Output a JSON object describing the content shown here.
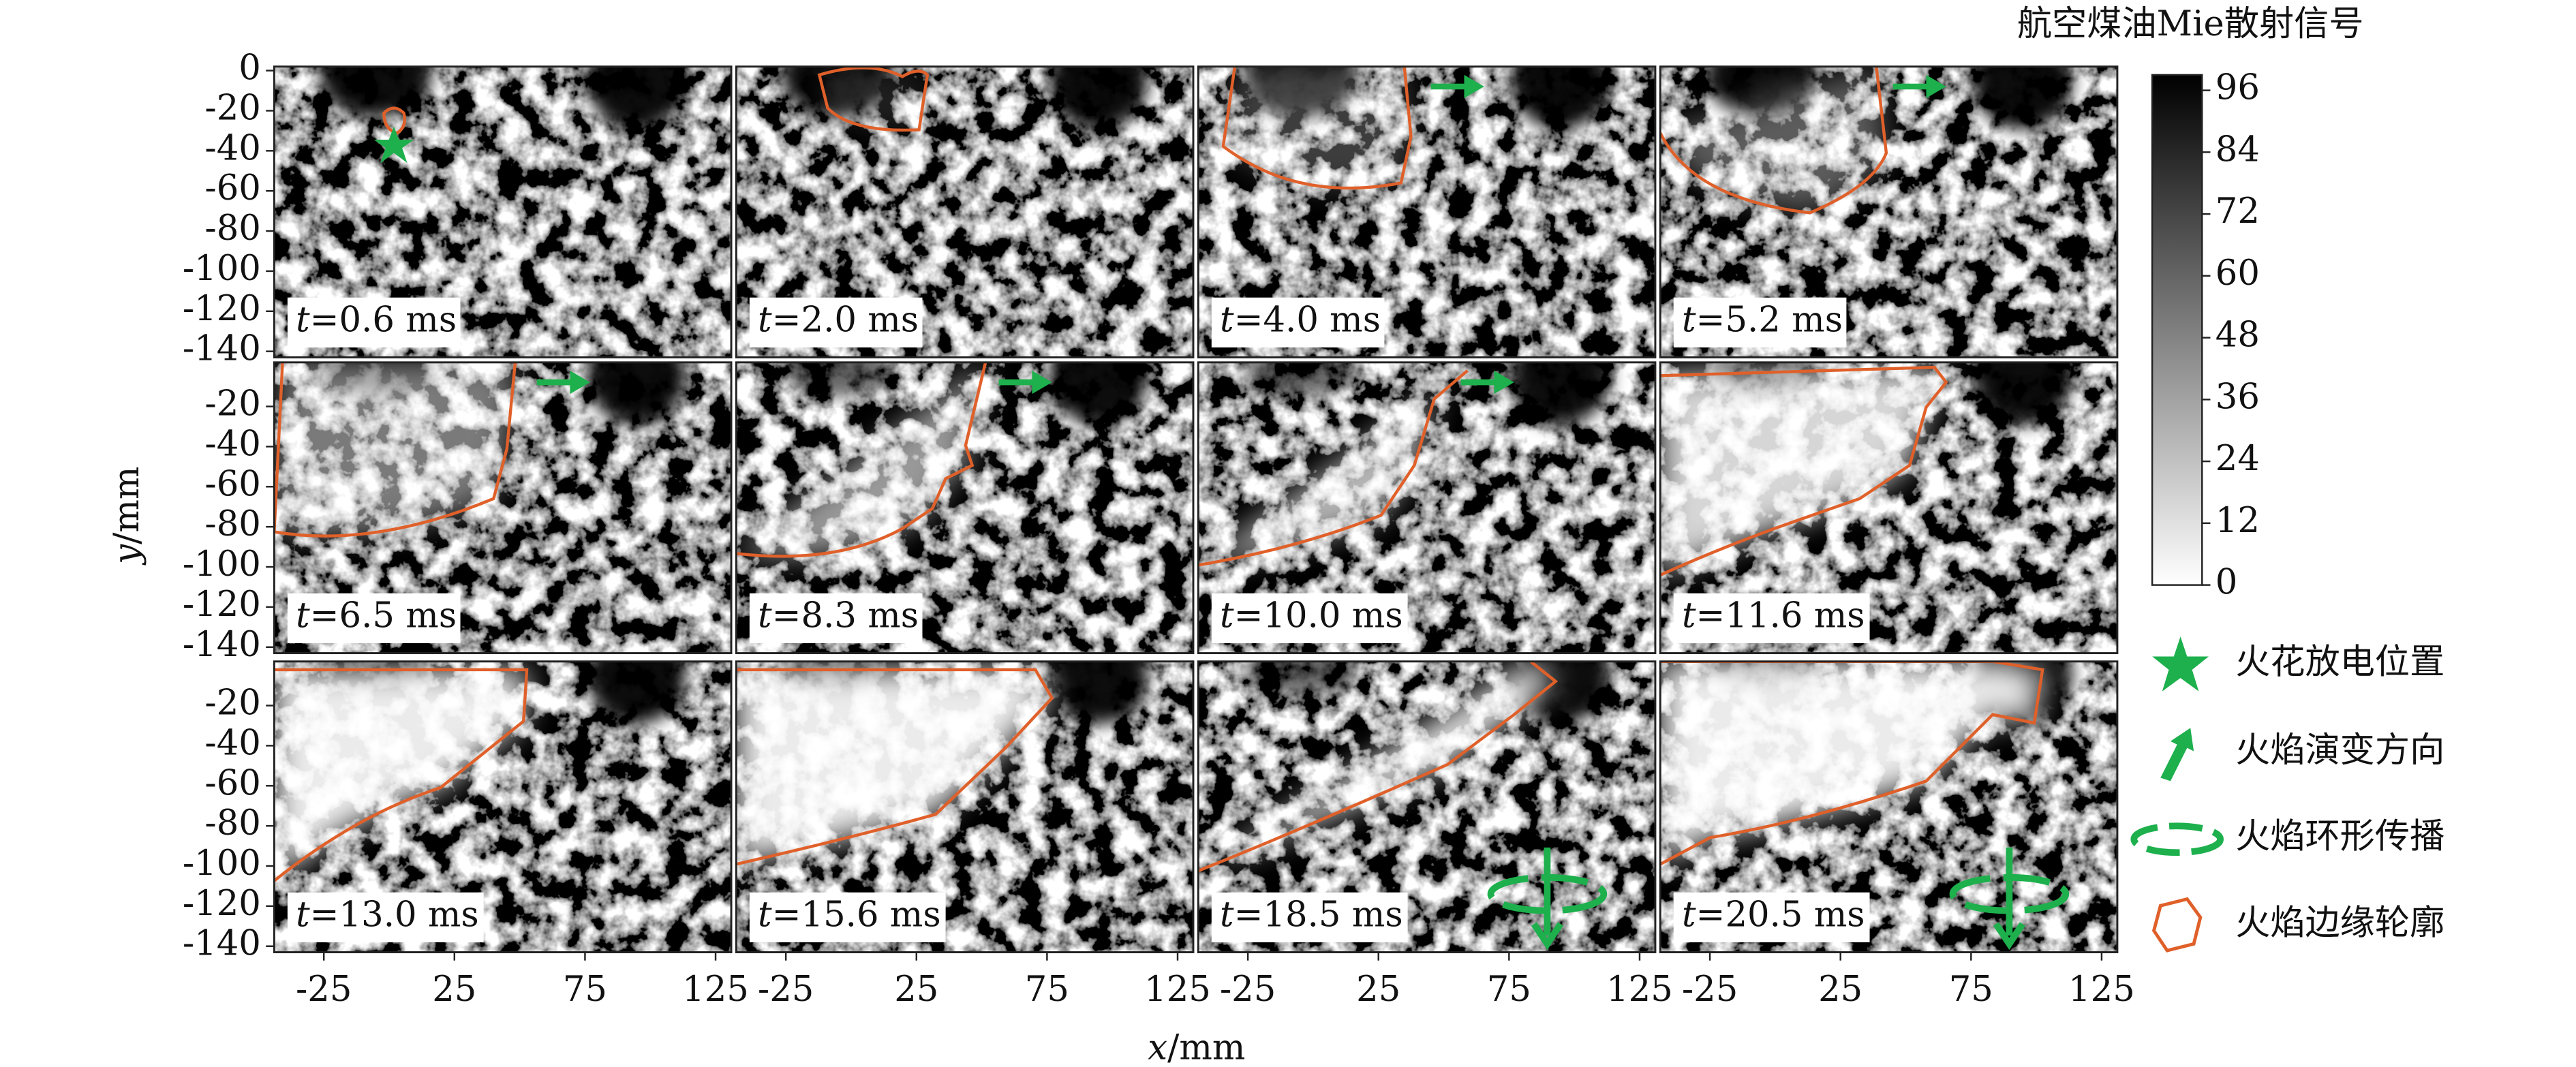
{
  "panels": [
    {
      "var": "t",
      "label": "=0.6 ms"
    },
    {
      "var": "t",
      "label": "=2.0 ms"
    },
    {
      "var": "t",
      "label": "=4.0 ms"
    },
    {
      "var": "t",
      "label": "=5.2 ms"
    },
    {
      "var": "t",
      "label": "=6.5 ms"
    },
    {
      "var": "t",
      "label": "=8.3 ms"
    },
    {
      "var": "t",
      "label": "=10.0 ms"
    },
    {
      "var": "t",
      "label": "=11.6 ms"
    },
    {
      "var": "t",
      "label": "=13.0 ms"
    },
    {
      "var": "t",
      "label": "=15.6 ms"
    },
    {
      "var": "t",
      "label": "=18.5 ms"
    },
    {
      "var": "t",
      "label": "=20.5 ms"
    }
  ],
  "x_axis": {
    "var": "x",
    "unit": "/mm",
    "xlim": [
      -44,
      131
    ],
    "xticks": [
      -25,
      25,
      75,
      125
    ]
  },
  "y_axis": {
    "var": "y",
    "unit": "/mm",
    "ylim": [
      -143,
      2
    ],
    "yticks_top_row": [
      0,
      -20,
      -40,
      -60,
      -80,
      -100,
      -120,
      -140
    ],
    "yticks": [
      -20,
      -40,
      -60,
      -80,
      -100,
      -120,
      -140
    ]
  },
  "colorbar": {
    "title": "航空煤油Mie散射信号",
    "ylim": [
      0,
      99
    ],
    "yticks": [
      0,
      12,
      24,
      36,
      48,
      60,
      72,
      84,
      96
    ]
  },
  "legend": [
    "火花放电位置",
    "火焰演变方向",
    "火焰环形传播",
    "火焰边缘轮廓"
  ]
}
